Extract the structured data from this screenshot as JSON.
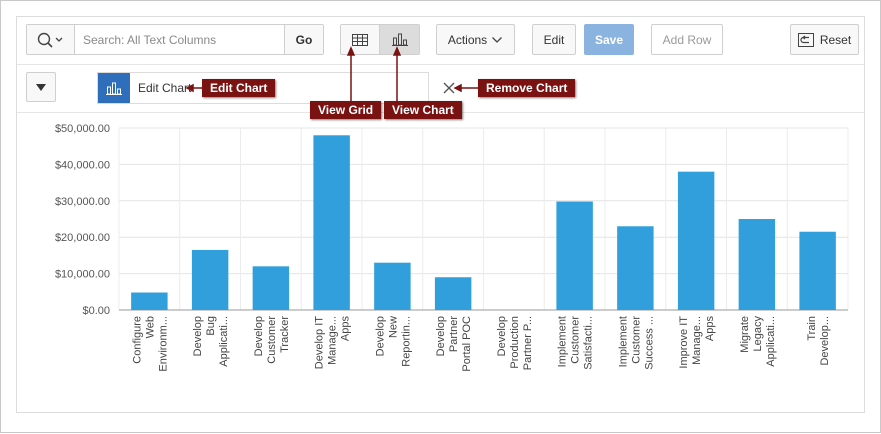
{
  "toolbar": {
    "search_placeholder": "Search: All Text Columns",
    "go_label": "Go",
    "actions_label": "Actions",
    "edit_label": "Edit",
    "save_label": "Save",
    "add_row_label": "Add Row",
    "reset_label": "Reset"
  },
  "chart_filter": {
    "chip_label": "Edit Chart"
  },
  "callouts": {
    "edit_chart": "Edit Chart",
    "view_grid": "View Grid",
    "view_chart": "View Chart",
    "remove_chart": "Remove Chart"
  },
  "colors": {
    "bar": "#309fdb",
    "callout": "#7a1212",
    "chip_icon": "#2f6eba",
    "save": "#8ab4df"
  },
  "chart_data": {
    "type": "bar",
    "categories": [
      [
        "Configure",
        "Web",
        "Environm..."
      ],
      [
        "Develop",
        "Bug",
        "Applicati..."
      ],
      [
        "Develop",
        "Customer",
        "Tracker"
      ],
      [
        "Develop IT",
        "Manage...",
        "Apps"
      ],
      [
        "Develop",
        "New",
        "Reportin..."
      ],
      [
        "Develop",
        "Partner",
        "Portal POC"
      ],
      [
        "Develop",
        "Production",
        "Partner P..."
      ],
      [
        "Implement",
        "Customer",
        "Satisfacti..."
      ],
      [
        "Implement",
        "Customer",
        "Success ..."
      ],
      [
        "Improve IT",
        "Manage...",
        "Apps"
      ],
      [
        "Migrate",
        "Legacy",
        "Applicati..."
      ],
      [
        "Train",
        "Develop..."
      ]
    ],
    "values": [
      4800,
      16500,
      12000,
      48000,
      13000,
      9000,
      0,
      29800,
      23000,
      38000,
      25000,
      21500
    ],
    "yticks": [
      "$0.00",
      "$10,000.00",
      "$20,000.00",
      "$30,000.00",
      "$40,000.00",
      "$50,000.00"
    ],
    "ylim": [
      0,
      50000
    ],
    "grid": true
  }
}
